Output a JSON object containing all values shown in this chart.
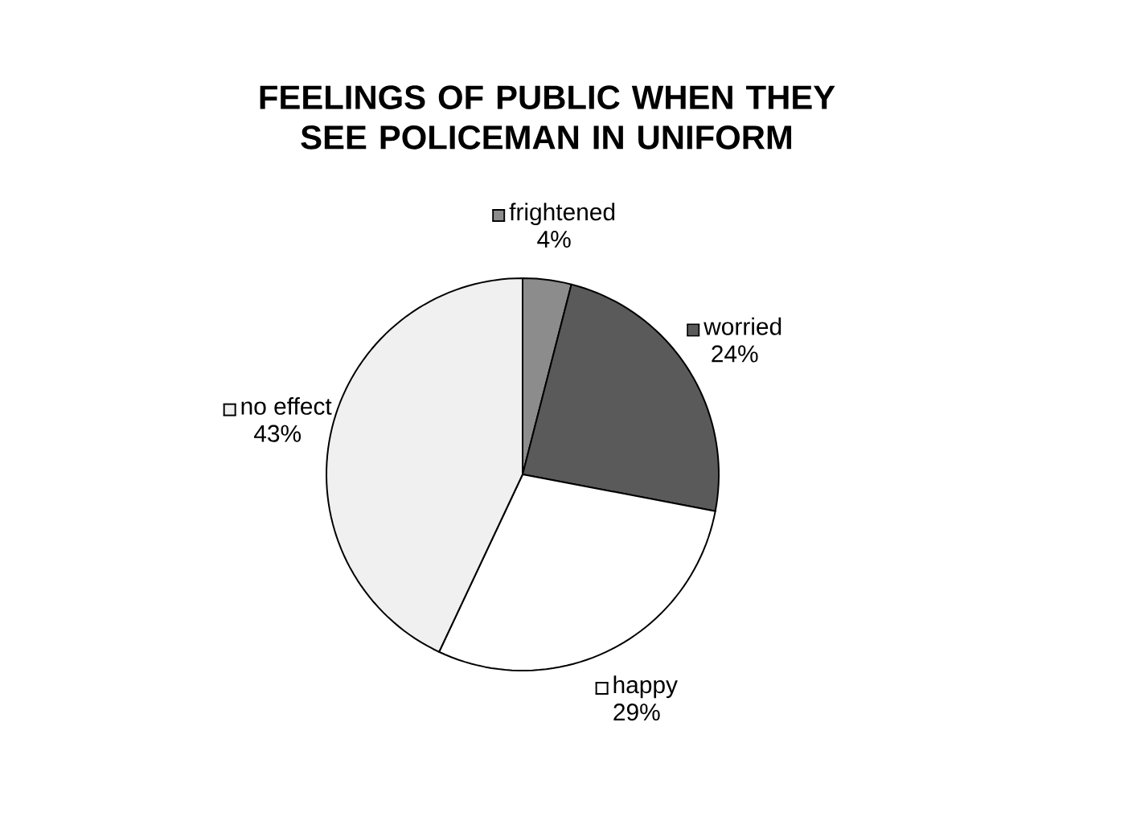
{
  "chart_data": {
    "type": "pie",
    "title": "FEELINGS OF PUBLIC WHEN THEY SEE POLICEMAN IN UNIFORM",
    "categories": [
      "frightened",
      "worried",
      "happy",
      "no effect"
    ],
    "values": [
      4,
      24,
      29,
      43
    ],
    "value_labels": [
      "4%",
      "24%",
      "29%",
      "43%"
    ],
    "colors": [
      "#8c8c8c",
      "#5a5a5a",
      "#ffffff",
      "#f0f0f0"
    ],
    "legend": true
  }
}
